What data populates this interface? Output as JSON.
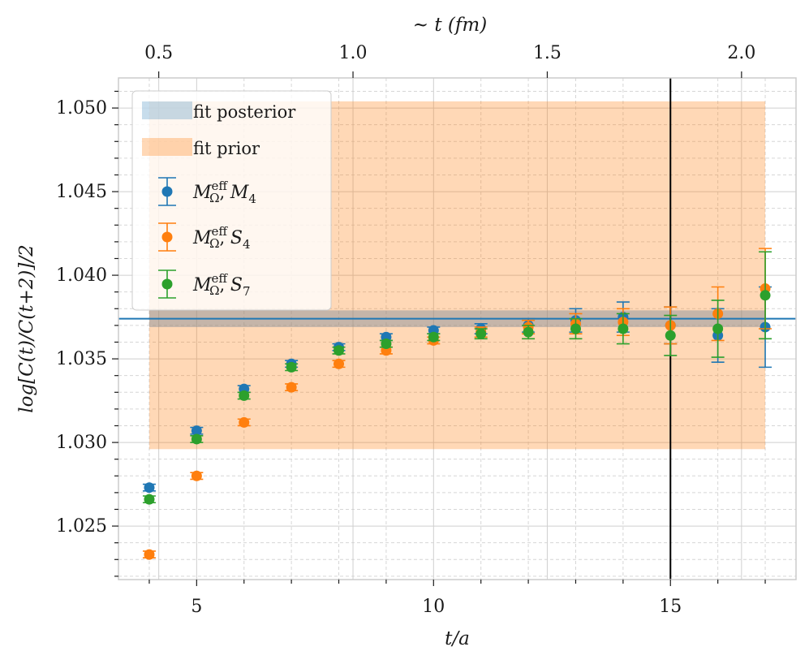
{
  "chart_data": {
    "type": "scatter",
    "xlabel": "t/a",
    "ylabel": "log[C(t)/C(t+2)]/2",
    "top_axis_label": "~ t (fm)",
    "xlim": [
      3.35,
      17.65
    ],
    "ylim": [
      1.0218,
      1.0518
    ],
    "x_ticks": [
      5,
      10,
      15
    ],
    "x_tick_labels": [
      "5",
      "10",
      "15"
    ],
    "y_ticks": [
      1.025,
      1.03,
      1.035,
      1.04,
      1.045,
      1.05
    ],
    "y_tick_labels": [
      "1.025",
      "1.030",
      "1.035",
      "1.040",
      "1.045",
      "1.050"
    ],
    "top_ticks_x": [
      4.2,
      8.3,
      12.4,
      16.5
    ],
    "top_tick_labels": [
      "0.5",
      "1.0",
      "1.5",
      "2.0"
    ],
    "grid": true,
    "legend_position": "upper-left",
    "fit_posterior": {
      "label": "fit posterior",
      "x_range": [
        4,
        17
      ],
      "central": 1.0374,
      "lower": 1.0369,
      "upper": 1.0379,
      "color": "#1f77b4"
    },
    "fit_prior": {
      "label": "fit prior",
      "x_range": [
        4,
        17
      ],
      "lower": 1.0296,
      "upper": 1.0504,
      "color": "#ff7f0e"
    },
    "vertical_line_x": 15,
    "series": [
      {
        "name": "M_Ω^eff, M_4",
        "color": "#1f77b4",
        "x": [
          4,
          5,
          6,
          7,
          8,
          9,
          10,
          11,
          12,
          13,
          14,
          15,
          16,
          17
        ],
        "y": [
          1.0273,
          1.0307,
          1.0332,
          1.0347,
          1.0357,
          1.0363,
          1.0367,
          1.0368,
          1.037,
          1.0373,
          1.0375,
          1.037,
          1.0364,
          1.0369
        ],
        "err": [
          0.0002,
          0.0002,
          0.0002,
          0.0002,
          0.0002,
          0.0002,
          0.0002,
          0.0003,
          0.0004,
          0.0007,
          0.0009,
          0.0011,
          0.0016,
          0.0024
        ]
      },
      {
        "name": "M_Ω^eff, S_4",
        "color": "#ff7f0e",
        "x": [
          4,
          5,
          6,
          7,
          8,
          9,
          10,
          11,
          12,
          13,
          14,
          15,
          16,
          17
        ],
        "y": [
          1.0233,
          1.028,
          1.0312,
          1.0333,
          1.0347,
          1.0355,
          1.0361,
          1.0366,
          1.0369,
          1.0371,
          1.0372,
          1.037,
          1.0377,
          1.0392
        ],
        "err": [
          0.0002,
          0.0002,
          0.0002,
          0.0002,
          0.0002,
          0.0002,
          0.0002,
          0.0003,
          0.0004,
          0.0006,
          0.0008,
          0.0011,
          0.0016,
          0.0024
        ]
      },
      {
        "name": "M_Ω^eff, S_7",
        "color": "#2ca02c",
        "x": [
          4,
          5,
          6,
          7,
          8,
          9,
          10,
          11,
          12,
          13,
          14,
          15,
          16,
          17
        ],
        "y": [
          1.0266,
          1.0302,
          1.0328,
          1.0345,
          1.0355,
          1.0359,
          1.0363,
          1.0365,
          1.0366,
          1.0368,
          1.0368,
          1.0364,
          1.0368,
          1.0388
        ],
        "err": [
          0.0002,
          0.0002,
          0.0002,
          0.0002,
          0.0002,
          0.0002,
          0.0002,
          0.0003,
          0.0004,
          0.0006,
          0.0009,
          0.0012,
          0.0017,
          0.0026
        ]
      }
    ]
  }
}
